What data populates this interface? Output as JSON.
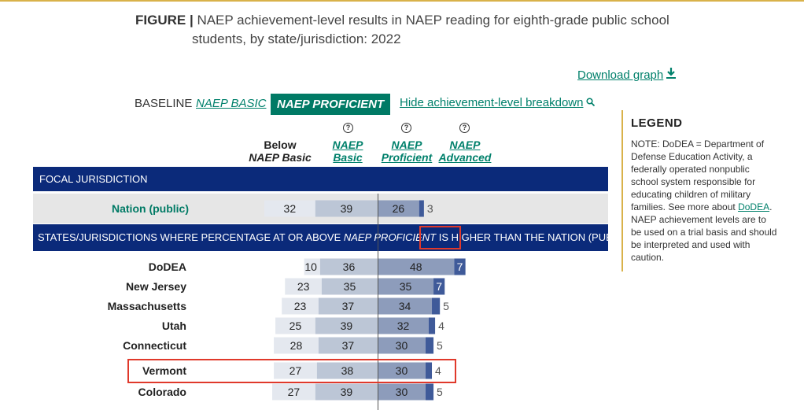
{
  "figure": {
    "prefix": "FIGURE |",
    "title_line1": "NAEP achievement-level results in NAEP reading for eighth-grade public school",
    "title_line2": "students, by state/jurisdiction: 2022"
  },
  "download": {
    "label": "Download graph",
    "icon": "download-icon"
  },
  "controls": {
    "baseline_label": "BASELINE",
    "basic_option": "NAEP BASIC",
    "proficient_option": "NAEP PROFICIENT",
    "hide_breakdown": "Hide achievement-level breakdown",
    "hide_icon": "magnifier-icon"
  },
  "columns": {
    "below_line1": "Below",
    "below_line2": "NAEP Basic",
    "basic_line1": "NAEP",
    "basic_line2": "Basic",
    "proficient_line1": "NAEP",
    "proficient_line2": "Proficient",
    "advanced_line1": "NAEP",
    "advanced_line2": "Advanced",
    "help_symbol": "?"
  },
  "sections": {
    "focal": "FOCAL JURISDICTION",
    "states_prefix": "STATES/JURISDICTIONS WHERE PERCENTAGE AT OR ABOVE ",
    "states_italic": "NAEP PROFICIENT",
    "states_is": " IS ",
    "states_higher": "HIGHER",
    "states_suffix": " THAN THE NATION (PUBLIC)"
  },
  "legend": {
    "title": "LEGEND",
    "note_before": "NOTE: DoDEA = Department of Defense Education Activity, a federally operated nonpublic school system responsible for educating children of military families. See more about ",
    "note_link": "DoDEA",
    "note_after": ". NAEP achievement levels are to be used on a trial basis and should be interpreted and used with caution."
  },
  "colors": {
    "below": "#e4e8ef",
    "basic": "#bcc6d6",
    "proficient": "#8d9cbb",
    "advanced": "#3f5a99",
    "header": "#0b2a7a",
    "accent": "#007a65",
    "highlight": "#e0392b"
  },
  "chart_data": {
    "type": "bar",
    "stacked": "diverging",
    "baseline": "NAEP Proficient",
    "series": [
      {
        "name": "Below NAEP Basic",
        "values": [
          32,
          10,
          23,
          23,
          25,
          28,
          27,
          27
        ]
      },
      {
        "name": "NAEP Basic",
        "values": [
          39,
          36,
          35,
          37,
          39,
          37,
          38,
          39
        ]
      },
      {
        "name": "NAEP Proficient",
        "values": [
          26,
          48,
          35,
          34,
          32,
          30,
          30,
          30
        ]
      },
      {
        "name": "NAEP Advanced",
        "values": [
          3,
          7,
          7,
          5,
          4,
          5,
          4,
          5
        ]
      }
    ],
    "categories": [
      "Nation (public)",
      "DoDEA",
      "New Jersey",
      "Massachusetts",
      "Utah",
      "Connecticut",
      "Vermont",
      "Colorado"
    ],
    "highlighted": "Vermont"
  }
}
